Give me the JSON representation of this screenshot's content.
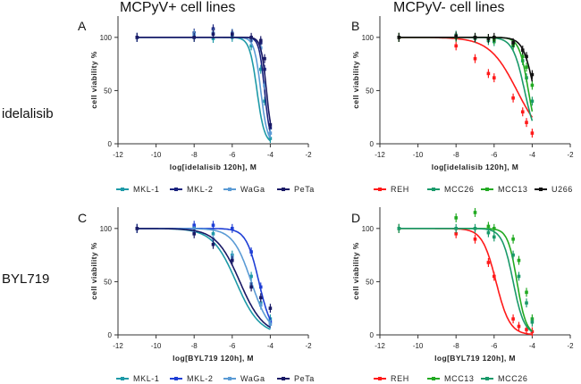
{
  "titles": {
    "left": "MCPyV+ cell lines",
    "right": "MCPyV- cell lines"
  },
  "row_labels": {
    "top": "idelalisib",
    "bottom": "BYL719"
  },
  "colors": {
    "MKL-1": "#1e9aa8",
    "MKL-2": "#1a237e",
    "WaGa": "#5b9bd5",
    "PeTa": "#1a1a66",
    "MKL-2 (BYL719)": "#1f3fd6",
    "REH": "#ff1a1a",
    "MCC26": "#1a9a6a",
    "MCC13": "#22aa22",
    "U266": "#111111"
  },
  "chart_data": [
    {
      "type": "scatter",
      "letter": "A",
      "xlabel": "log[idelalisib 120h], M",
      "ylabel": "cell viability %",
      "xlim": [
        -12,
        -2
      ],
      "ylim": [
        0,
        120
      ],
      "xticks": [
        "-12",
        "-10",
        "-8",
        "-6",
        "-4",
        "-2"
      ],
      "yticks": [
        "0",
        "50",
        "100"
      ],
      "legend": [
        "MKL-1",
        "MKL-2",
        "WaGa",
        "PeTa"
      ],
      "x": [
        -11,
        -8,
        -7,
        -6,
        -5,
        -4.5,
        -4.3,
        -4
      ],
      "series": [
        {
          "name": "MKL-1",
          "color_key": "MKL-1",
          "logIC50": -4.7,
          "hill": 2.2,
          "values": [
            100,
            100,
            99,
            100,
            92,
            70,
            40,
            5
          ]
        },
        {
          "name": "MKL-2",
          "color_key": "MKL-2",
          "logIC50": -4.3,
          "hill": 3.0,
          "values": [
            100,
            104,
            108,
            103,
            98,
            95,
            70,
            15
          ]
        },
        {
          "name": "WaGa",
          "color_key": "WaGa",
          "logIC50": -4.5,
          "hill": 2.5,
          "values": [
            100,
            103,
            104,
            104,
            97,
            90,
            55,
            10
          ]
        },
        {
          "name": "PeTa",
          "color_key": "PeTa",
          "logIC50": -4.2,
          "hill": 3.0,
          "values": [
            100,
            100,
            103,
            103,
            100,
            97,
            80,
            18
          ]
        }
      ]
    },
    {
      "type": "scatter",
      "letter": "B",
      "xlabel": "log[idelalisib 120h], M",
      "ylabel": "cell viability %",
      "xlim": [
        -12,
        -2
      ],
      "ylim": [
        0,
        120
      ],
      "xticks": [
        "-12",
        "-10",
        "-8",
        "-6",
        "-4",
        "-2"
      ],
      "yticks": [
        "0",
        "50",
        "100"
      ],
      "legend": [
        "REH",
        "MCC26",
        "MCC13",
        "U266"
      ],
      "x": [
        -11,
        -8,
        -7,
        -6.3,
        -6,
        -5,
        -4.5,
        -4.3,
        -4
      ],
      "series": [
        {
          "name": "REH",
          "color_key": "REH",
          "logIC50": -4.8,
          "hill": 0.6,
          "values": [
            100,
            92,
            80,
            66,
            62,
            43,
            30,
            20,
            10
          ]
        },
        {
          "name": "MCC26",
          "color_key": "MCC26",
          "logIC50": -4.4,
          "hill": 1.4,
          "values": [
            100,
            102,
            99,
            97,
            96,
            92,
            78,
            62,
            40
          ]
        },
        {
          "name": "MCC13",
          "color_key": "MCC13",
          "logIC50": -4.2,
          "hill": 1.8,
          "values": [
            100,
            100,
            100,
            99,
            98,
            93,
            82,
            72,
            55
          ]
        },
        {
          "name": "U266",
          "color_key": "U266",
          "logIC50": -3.9,
          "hill": 1.5,
          "values": [
            100,
            101,
            100,
            99,
            100,
            95,
            88,
            82,
            65
          ]
        }
      ]
    },
    {
      "type": "scatter",
      "letter": "C",
      "xlabel": "log[BYL719 120h], M",
      "ylabel": "cell viability %",
      "xlim": [
        -12,
        -2
      ],
      "ylim": [
        0,
        120
      ],
      "xticks": [
        "-12",
        "-10",
        "-8",
        "-6",
        "-4",
        "-2"
      ],
      "yticks": [
        "0",
        "50",
        "100"
      ],
      "legend": [
        "MKL-1",
        "MKL-2",
        "WaGa",
        "PeTa"
      ],
      "x": [
        -11,
        -8,
        -7,
        -6,
        -5,
        -4.5,
        -4
      ],
      "series": [
        {
          "name": "MKL-1",
          "color_key": "MKL-1",
          "logIC50": -5.8,
          "hill": 0.7,
          "values": [
            100,
            100,
            95,
            75,
            55,
            30,
            15
          ]
        },
        {
          "name": "MKL-2",
          "color_key": "MKL-2 (BYL719)",
          "logIC50": -4.6,
          "hill": 1.3,
          "values": [
            100,
            103,
            103,
            100,
            78,
            45,
            12
          ]
        },
        {
          "name": "WaGa",
          "color_key": "WaGa",
          "logIC50": -5.0,
          "hill": 0.9,
          "values": [
            100,
            98,
            90,
            73,
            48,
            28,
            10
          ]
        },
        {
          "name": "PeTa",
          "color_key": "PeTa",
          "logIC50": -5.6,
          "hill": 0.7,
          "values": [
            100,
            95,
            85,
            70,
            45,
            35,
            25
          ]
        }
      ]
    },
    {
      "type": "scatter",
      "letter": "D",
      "xlabel": "log[BYL719 120h], M",
      "ylabel": "cell viability %",
      "xlim": [
        -12,
        -2
      ],
      "ylim": [
        0,
        120
      ],
      "xticks": [
        "-12",
        "-10",
        "-8",
        "-6",
        "-4",
        "-2"
      ],
      "yticks": [
        "0",
        "50",
        "100"
      ],
      "legend": [
        "REH",
        "MCC13",
        "MCC26"
      ],
      "x": [
        -11,
        -8,
        -7,
        -6.3,
        -6,
        -5,
        -4.7,
        -4.3,
        -4
      ],
      "series": [
        {
          "name": "REH",
          "color_key": "REH",
          "logIC50": -5.9,
          "hill": 1.2,
          "values": [
            100,
            95,
            90,
            68,
            55,
            15,
            8,
            5,
            3
          ]
        },
        {
          "name": "MCC13",
          "color_key": "MCC13",
          "logIC50": -4.8,
          "hill": 1.8,
          "values": [
            100,
            110,
            115,
            102,
            100,
            90,
            70,
            40,
            15
          ]
        },
        {
          "name": "MCC26",
          "color_key": "MCC26",
          "logIC50": -5.0,
          "hill": 1.5,
          "values": [
            100,
            100,
            100,
            96,
            92,
            75,
            55,
            30,
            12
          ]
        }
      ]
    }
  ]
}
